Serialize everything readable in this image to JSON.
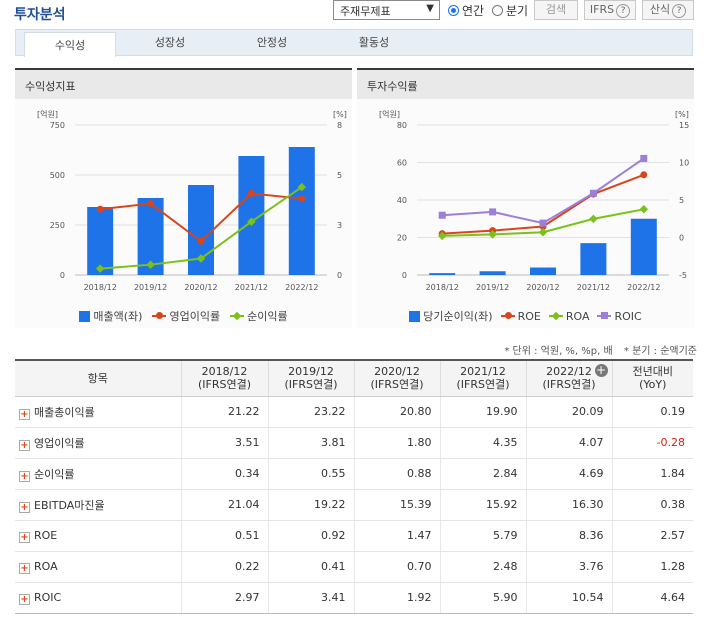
{
  "header": {
    "title": "투자분석",
    "select_value": "주재무제표",
    "radio_annual": "연간",
    "radio_quarter": "분기",
    "search_btn": "검색",
    "ifrs_btn": "IFRS",
    "formula_btn": "산식"
  },
  "tabs": [
    "수익성",
    "성장성",
    "안정성",
    "활동성"
  ],
  "colors": {
    "bar": "#1e73e8",
    "op": "#d8451d",
    "net": "#7ac21a",
    "roic": "#9b7fd9",
    "accent": "#1f4e96"
  },
  "panel_left": {
    "title": "수익성지표",
    "y_unit_left": "[억원]",
    "y_unit_right": "[%]",
    "legend": [
      "매출액(좌)",
      "영업이익률",
      "순이익률"
    ]
  },
  "panel_right": {
    "title": "투자수익률",
    "y_unit_left": "[억원]",
    "y_unit_right": "[%]",
    "legend": [
      "당기순이익(좌)",
      "ROE",
      "ROA",
      "ROIC"
    ]
  },
  "chart_data": [
    {
      "type": "bar",
      "title": "수익성지표",
      "categories": [
        "2018/12",
        "2019/12",
        "2020/12",
        "2021/12",
        "2022/12"
      ],
      "ylim_left": [
        0,
        750
      ],
      "yticks_left": [
        "0",
        "250",
        "500",
        "750"
      ],
      "ylim_right": [
        0,
        8
      ],
      "yticks_right": [
        "0",
        "3",
        "5",
        "8"
      ],
      "series": [
        {
          "name": "매출액(좌)",
          "kind": "bar",
          "axis": "left",
          "values": [
            340,
            385,
            450,
            595,
            640
          ]
        },
        {
          "name": "영업이익률",
          "kind": "line",
          "axis": "right",
          "values": [
            3.51,
            3.81,
            1.8,
            4.35,
            4.07
          ]
        },
        {
          "name": "순이익률",
          "kind": "line",
          "axis": "right",
          "values": [
            0.34,
            0.55,
            0.88,
            2.84,
            4.69
          ]
        }
      ]
    },
    {
      "type": "bar",
      "title": "투자수익률",
      "categories": [
        "2018/12",
        "2019/12",
        "2020/12",
        "2021/12",
        "2022/12"
      ],
      "ylim_left": [
        0,
        80
      ],
      "yticks_left": [
        "0",
        "20",
        "40",
        "60",
        "80"
      ],
      "ylim_right": [
        -5,
        15
      ],
      "yticks_right": [
        "-5",
        "0",
        "5",
        "10",
        "15"
      ],
      "series": [
        {
          "name": "당기순이익(좌)",
          "kind": "bar",
          "axis": "left",
          "values": [
            1,
            2,
            4,
            17,
            30
          ]
        },
        {
          "name": "ROE",
          "kind": "line",
          "axis": "right",
          "values": [
            0.51,
            0.92,
            1.47,
            5.79,
            8.36
          ]
        },
        {
          "name": "ROA",
          "kind": "line",
          "axis": "right",
          "values": [
            0.22,
            0.41,
            0.7,
            2.48,
            3.76
          ]
        },
        {
          "name": "ROIC",
          "kind": "line",
          "axis": "right",
          "values": [
            2.97,
            3.41,
            1.92,
            5.9,
            10.54
          ]
        }
      ]
    }
  ],
  "notes": {
    "unit": "* 단위 : 억원, %, %p, 배",
    "quarter": "* 분기 : 순액기준"
  },
  "table": {
    "headers": [
      {
        "l1": "항목",
        "l2": ""
      },
      {
        "l1": "2018/12",
        "l2": "(IFRS연결)"
      },
      {
        "l1": "2019/12",
        "l2": "(IFRS연결)"
      },
      {
        "l1": "2020/12",
        "l2": "(IFRS연결)"
      },
      {
        "l1": "2021/12",
        "l2": "(IFRS연결)"
      },
      {
        "l1": "2022/12",
        "l2": "(IFRS연결)"
      },
      {
        "l1": "전년대비",
        "l2": "(YoY)"
      }
    ],
    "rows": [
      {
        "name": "매출총이익률",
        "v": [
          "21.22",
          "23.22",
          "20.80",
          "19.90",
          "20.09",
          "0.19"
        ]
      },
      {
        "name": "영업이익률",
        "v": [
          "3.51",
          "3.81",
          "1.80",
          "4.35",
          "4.07",
          "-0.28"
        ]
      },
      {
        "name": "순이익률",
        "v": [
          "0.34",
          "0.55",
          "0.88",
          "2.84",
          "4.69",
          "1.84"
        ]
      },
      {
        "name": "EBITDA마진율",
        "v": [
          "21.04",
          "19.22",
          "15.39",
          "15.92",
          "16.30",
          "0.38"
        ]
      },
      {
        "name": "ROE",
        "v": [
          "0.51",
          "0.92",
          "1.47",
          "5.79",
          "8.36",
          "2.57"
        ]
      },
      {
        "name": "ROA",
        "v": [
          "0.22",
          "0.41",
          "0.70",
          "2.48",
          "3.76",
          "1.28"
        ]
      },
      {
        "name": "ROIC",
        "v": [
          "2.97",
          "3.41",
          "1.92",
          "5.90",
          "10.54",
          "4.64"
        ]
      }
    ]
  }
}
